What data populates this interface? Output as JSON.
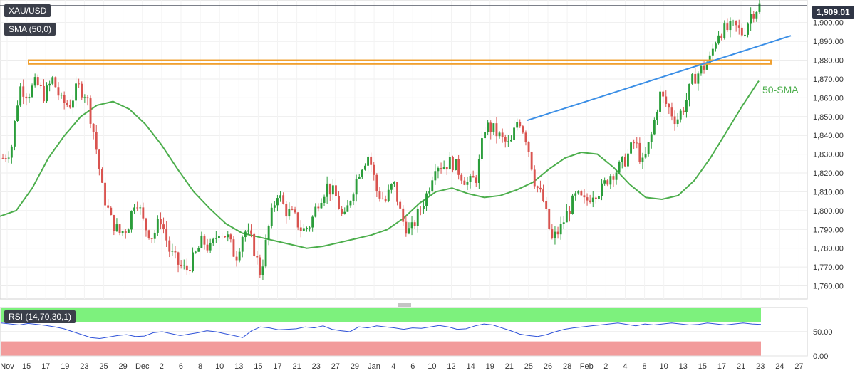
{
  "symbol_label": "XAU/USD",
  "sma_label": "SMA (50,0)",
  "sma_annotation": "50-SMA",
  "rsi_label": "RSI (14,70,30,1)",
  "last_price_label": "1,909.01",
  "colors": {
    "up": "#2a9d3a",
    "down": "#d9534f",
    "sma": "#4cae4c",
    "trendline": "#3a8ee6",
    "resistance_zone": "#f0a030",
    "rsi_line": "#2f52d9",
    "rsi_overbought_band": "#66ee66",
    "rsi_oversold_band": "#f08a8a"
  },
  "chart_data": [
    {
      "type": "candlestick",
      "title": "XAU/USD",
      "ylim": [
        1753,
        1912
      ],
      "y_ticks": [
        "1,760.00",
        "1,770.00",
        "1,780.00",
        "1,790.00",
        "1,800.00",
        "1,810.00",
        "1,820.00",
        "1,830.00",
        "1,840.00",
        "1,850.00",
        "1,860.00",
        "1,870.00",
        "1,880.00",
        "1,890.00",
        "1,900.00"
      ],
      "y_tick_values": [
        1760,
        1770,
        1780,
        1790,
        1800,
        1810,
        1820,
        1830,
        1840,
        1850,
        1860,
        1870,
        1880,
        1890,
        1900
      ],
      "x_tick_labels": [
        "Nov",
        "15",
        "17",
        "19",
        "23",
        "25",
        "29",
        "Dec",
        "2",
        "6",
        "8",
        "10",
        "13",
        "15",
        "17",
        "21",
        "23",
        "27",
        "29",
        "Jan",
        "4",
        "6",
        "10",
        "12",
        "14",
        "19",
        "21",
        "25",
        "26",
        "28",
        "Feb",
        "2",
        "4",
        "8",
        "10",
        "13",
        "15",
        "17",
        "21",
        "23",
        "24",
        "27"
      ],
      "last_price": 1909.01,
      "resistance_zone": [
        1878,
        1880
      ],
      "trendline": [
        [
          0,
          1848
        ],
        [
          1,
          1893
        ]
      ],
      "sma_50": [
        1797,
        1800,
        1812,
        1828,
        1840,
        1850,
        1856,
        1858,
        1854,
        1846,
        1835,
        1822,
        1810,
        1801,
        1793,
        1788,
        1786,
        1784,
        1782,
        1780,
        1781,
        1783,
        1785,
        1787,
        1790,
        1796,
        1804,
        1810,
        1812,
        1809,
        1807,
        1808,
        1811,
        1815,
        1822,
        1828,
        1831,
        1830,
        1823,
        1814,
        1807,
        1806,
        1808,
        1816,
        1828,
        1842,
        1856,
        1869
      ],
      "ohlc_path": [
        1828,
        1833,
        1866,
        1862,
        1868,
        1861,
        1870,
        1858,
        1856,
        1866,
        1862,
        1840,
        1810,
        1795,
        1788,
        1791,
        1808,
        1792,
        1786,
        1796,
        1779,
        1772,
        1768,
        1775,
        1784,
        1779,
        1790,
        1786,
        1775,
        1790,
        1783,
        1766,
        1792,
        1810,
        1800,
        1797,
        1789,
        1793,
        1806,
        1813,
        1808,
        1794,
        1810,
        1823,
        1830,
        1810,
        1805,
        1815,
        1795,
        1788,
        1799,
        1809,
        1825,
        1824,
        1826,
        1820,
        1814,
        1818,
        1845,
        1843,
        1838,
        1834,
        1850,
        1838,
        1815,
        1805,
        1784,
        1790,
        1800,
        1808,
        1804,
        1810,
        1811,
        1819,
        1822,
        1828,
        1837,
        1824,
        1840,
        1862,
        1855,
        1848,
        1856,
        1870,
        1875,
        1880,
        1895,
        1896,
        1898,
        1894,
        1905,
        1909
      ]
    },
    {
      "type": "line",
      "title": "RSI (14,70,30,1)",
      "ylim": [
        0,
        100
      ],
      "y_ticks": [
        "0.00",
        "50.00"
      ],
      "y_tick_values": [
        0,
        50
      ],
      "overbought_zone": [
        70,
        100
      ],
      "oversold_zone": [
        0,
        30
      ],
      "values": [
        68,
        66,
        64,
        67,
        65,
        63,
        60,
        56,
        50,
        44,
        38,
        36,
        39,
        42,
        44,
        40,
        41,
        48,
        50,
        46,
        42,
        45,
        48,
        52,
        50,
        46,
        42,
        38,
        52,
        60,
        58,
        54,
        55,
        56,
        60,
        58,
        62,
        55,
        52,
        50,
        60,
        58,
        62,
        60,
        58,
        55,
        58,
        57,
        60,
        63,
        60,
        55,
        56,
        62,
        66,
        64,
        58,
        52,
        45,
        42,
        40,
        44,
        50,
        55,
        58,
        60,
        62,
        64,
        66,
        68,
        65,
        62,
        66,
        64,
        66,
        68,
        66,
        64,
        65,
        68,
        66,
        64,
        66,
        68,
        66,
        65
      ]
    }
  ]
}
